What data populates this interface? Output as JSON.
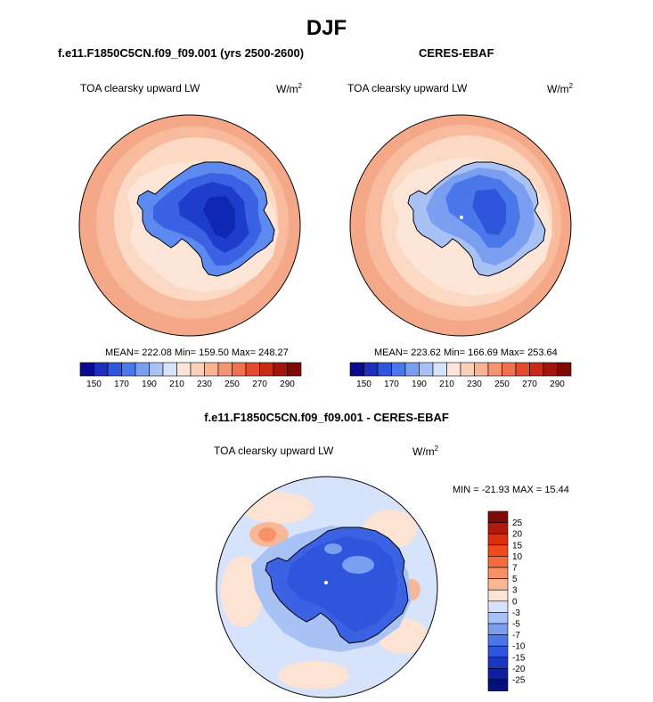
{
  "page_title": "DJF",
  "panels": [
    {
      "title": "f.e11.F1850C5CN.f09_f09.001 (yrs 2500-2600)",
      "variable": "TOA clearsky upward LW",
      "units_base": "W/m",
      "units_exp": "2",
      "stats": "MEAN= 222.08  Min= 159.50  Max= 248.27"
    },
    {
      "title": "CERES-EBAF",
      "variable": "TOA clearsky upward LW",
      "units_base": "W/m",
      "units_exp": "2",
      "stats": "MEAN= 223.62  Min= 166.69  Max= 253.64"
    },
    {
      "title": "f.e11.F1850C5CN.f09_f09.001 - CERES-EBAF",
      "variable": "TOA clearsky upward LW",
      "units_base": "W/m",
      "units_exp": "2",
      "stats": "MIN = -21.93 MAX =  15.44"
    }
  ],
  "abs_colorbar": {
    "labels": [
      "150",
      "170",
      "190",
      "210",
      "230",
      "250",
      "270",
      "290"
    ],
    "colors": [
      "#0a0a8c",
      "#1f2fbd",
      "#2f55dd",
      "#4a78ea",
      "#7a9ef0",
      "#a9c2f5",
      "#d6e3fa",
      "#fde6d8",
      "#fcd0b8",
      "#f9b393",
      "#f59470",
      "#f07050",
      "#e44a2f",
      "#c92a18",
      "#a5140c",
      "#7d0a05"
    ]
  },
  "diff_colorbar": {
    "labels": [
      "25",
      "20",
      "15",
      "10",
      "7",
      "5",
      "3",
      "0",
      "-3",
      "-5",
      "-7",
      "-10",
      "-15",
      "-20",
      "-25"
    ],
    "colors": [
      "#7d0a05",
      "#b01a0c",
      "#d8300f",
      "#f04a1e",
      "#f66c3e",
      "#f89068",
      "#fab796",
      "#fde3d3",
      "#d6e3fa",
      "#a9c2f5",
      "#7a9ef0",
      "#4a78ea",
      "#2f55dd",
      "#1a35c0",
      "#0f1fa0",
      "#06107a"
    ]
  }
}
